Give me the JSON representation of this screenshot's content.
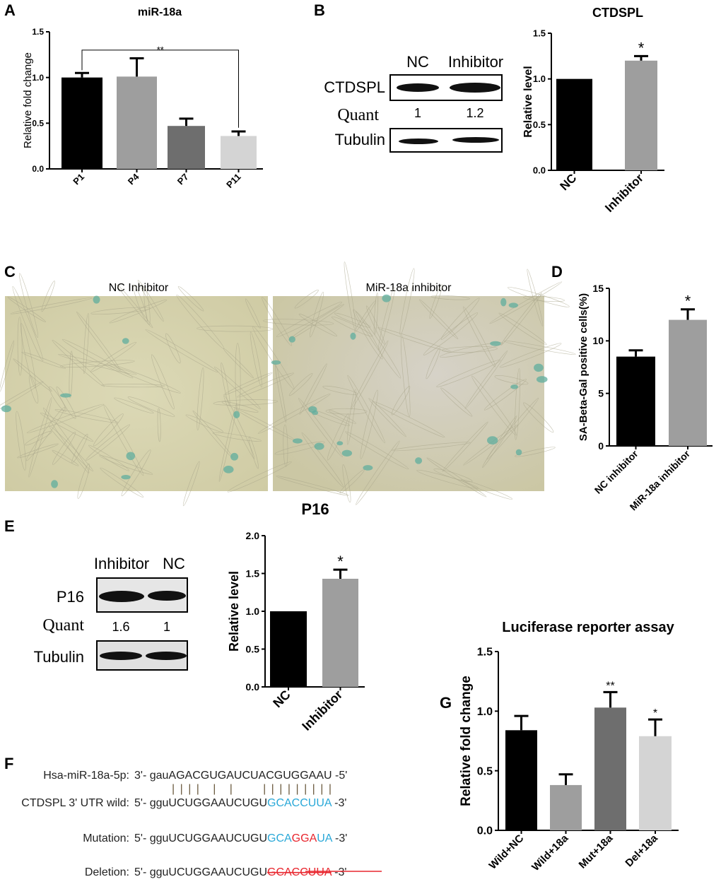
{
  "panel_labels": {
    "A": "A",
    "B": "B",
    "C": "C",
    "D": "D",
    "E": "E",
    "F": "F",
    "G": "G"
  },
  "blot_B": {
    "lanes": [
      "NC",
      "Inhibitor"
    ],
    "rows": [
      "CTDSPL",
      "Quant",
      "Tubulin"
    ],
    "quant": [
      "1",
      "1.2"
    ]
  },
  "blot_E": {
    "lanes": [
      "Inhibitor",
      "NC"
    ],
    "rows": [
      "P16",
      "Quant",
      "Tubulin"
    ],
    "quant": [
      "1.6",
      "1"
    ]
  },
  "images_C": {
    "left": "NC Inhibitor",
    "right": "MiR-18a inhibitor"
  },
  "sequences": {
    "mir": {
      "label": "Hsa-miR-18a-5p:",
      "prefix": "3'- ",
      "seq": "gauAGACGUGAUCUACGUGGAAU",
      "suffix": " -5'"
    },
    "pairing": "| | | |   |   |       | | | | | | | | |",
    "wild": {
      "label": "CTDSPL 3' UTR  wild:",
      "prefix": "5'- ",
      "seq_black": "gguUCUGGAAUCUGU",
      "seq_site": "GCACCUUA",
      "suffix": " -3'"
    },
    "mutation": {
      "label": "Mutation:",
      "prefix": "5'- ",
      "seq_black": "gguUCUGGAAUCUGU",
      "seq_a": "GCA",
      "seq_mut": "GGA",
      "seq_b": "UA",
      "suffix": " -3'"
    },
    "deletion": {
      "label": "Deletion:",
      "prefix": "5'- ",
      "seq_black": "gguUCUGGAAUCUGU",
      "seq_del": "GCACCUUA",
      "suffix": " -3'"
    },
    "colors": {
      "site": "#29a8d8",
      "mut": "#e8262e"
    }
  },
  "chart_data": [
    {
      "id": "A",
      "type": "bar",
      "title": "miR-18a",
      "ylabel": "Relative fold change",
      "ylim": [
        0,
        1.5
      ],
      "yticks": [
        "0.0",
        "0.5",
        "1.0",
        "1.5"
      ],
      "categories": [
        "P1",
        "P4",
        "P7",
        "P11"
      ],
      "values": [
        1.0,
        1.01,
        0.47,
        0.36
      ],
      "errors": [
        0.05,
        0.2,
        0.08,
        0.05
      ],
      "colors": [
        "#000000",
        "#9e9e9e",
        "#6e6e6e",
        "#d4d4d4"
      ],
      "annotations": [
        "",
        "",
        "",
        ""
      ],
      "bracket": {
        "from": 0,
        "to": 3,
        "label": "**"
      }
    },
    {
      "id": "B",
      "type": "bar",
      "title": "CTDSPL",
      "ylabel": "Relative level",
      "ylim": [
        0,
        1.5
      ],
      "yticks": [
        "0.0",
        "0.5",
        "1.0",
        "1.5"
      ],
      "categories": [
        "NC",
        "Inhibitor"
      ],
      "values": [
        1.0,
        1.2
      ],
      "errors": [
        0,
        0.05
      ],
      "colors": [
        "#000000",
        "#9e9e9e"
      ],
      "annotations": [
        "",
        "*"
      ]
    },
    {
      "id": "D",
      "type": "bar",
      "title": "",
      "ylabel": "SA-Beta-Gal positive cells(%)",
      "ylim": [
        0,
        15
      ],
      "yticks": [
        "0",
        "5",
        "10",
        "15"
      ],
      "categories": [
        "NC inhibitor",
        "MiR-18a inhibitor"
      ],
      "values": [
        8.5,
        12.0
      ],
      "errors": [
        0.6,
        1.0
      ],
      "colors": [
        "#000000",
        "#9e9e9e"
      ],
      "annotations": [
        "",
        "*"
      ]
    },
    {
      "id": "E",
      "type": "bar",
      "title": "P16",
      "ylabel": "Relative level",
      "ylim": [
        0,
        2
      ],
      "yticks": [
        "0.0",
        "0.5",
        "1.0",
        "1.5",
        "2.0"
      ],
      "categories": [
        "NC",
        "Inhibitor"
      ],
      "values": [
        1.0,
        1.43
      ],
      "errors": [
        0,
        0.12
      ],
      "colors": [
        "#000000",
        "#9e9e9e"
      ],
      "annotations": [
        "",
        "*"
      ]
    },
    {
      "id": "G",
      "type": "bar",
      "title": "Luciferase reporter assay",
      "ylabel": "Relative fold change",
      "ylim": [
        0,
        1.5
      ],
      "yticks": [
        "0.0",
        "0.5",
        "1.0",
        "1.5"
      ],
      "categories": [
        "Wild+NC",
        "Wild+18a",
        "Mut+18a",
        "Del+18a"
      ],
      "values": [
        0.84,
        0.38,
        1.03,
        0.79
      ],
      "errors": [
        0.12,
        0.09,
        0.13,
        0.14
      ],
      "colors": [
        "#000000",
        "#9e9e9e",
        "#6e6e6e",
        "#d4d4d4"
      ],
      "annotations": [
        "",
        "",
        "**",
        "*"
      ]
    }
  ]
}
